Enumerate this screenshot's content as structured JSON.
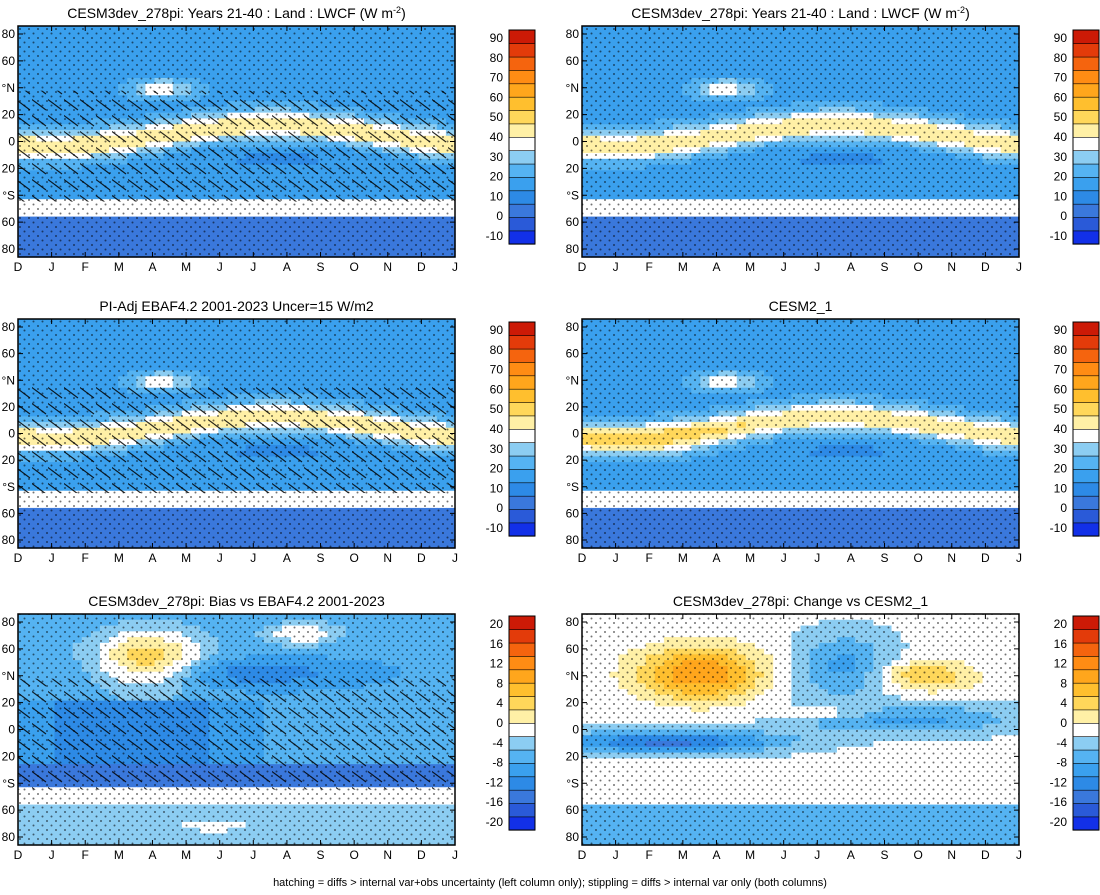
{
  "footnote": "hatching = diffs > internal var+obs uncertainty (left column only); stippling = diffs > internal var only (both columns)",
  "chart_data": [
    {
      "type": "heatmap",
      "title_html": "CESM3dev_278pi: Years 21-40 : Land : LWCF (W m<tspan baseline-shift='super' font-size='9'>-2</tspan>)",
      "title_text": "CESM3dev_278pi: Years 21-40 : Land : LWCF (W m-2)",
      "x_ticks": [
        "D",
        "J",
        "F",
        "M",
        "A",
        "M",
        "J",
        "J",
        "A",
        "S",
        "O",
        "N",
        "D",
        "J"
      ],
      "y_ticks": [
        "80",
        "60",
        "°N",
        "20",
        "0",
        "20",
        "°S",
        "60",
        "80"
      ],
      "colorbar_labels": [
        "90",
        "80",
        "70",
        "60",
        "50",
        "40",
        "30",
        "20",
        "10",
        "0",
        "-10"
      ],
      "field": "abs",
      "hatching": true,
      "stippling": true
    },
    {
      "type": "heatmap",
      "title_html": "CESM3dev_278pi: Years 21-40 : Land : LWCF (W m<tspan baseline-shift='super' font-size='9'>-2</tspan>)",
      "title_text": "CESM3dev_278pi: Years 21-40 : Land : LWCF (W m-2)",
      "x_ticks": [
        "D",
        "J",
        "F",
        "M",
        "A",
        "M",
        "J",
        "J",
        "A",
        "S",
        "O",
        "N",
        "D",
        "J"
      ],
      "y_ticks": [
        "80",
        "60",
        "°N",
        "20",
        "0",
        "20",
        "°S",
        "60",
        "80"
      ],
      "colorbar_labels": [
        "90",
        "80",
        "70",
        "60",
        "50",
        "40",
        "30",
        "20",
        "10",
        "0",
        "-10"
      ],
      "field": "abs",
      "hatching": false,
      "stippling": true
    },
    {
      "type": "heatmap",
      "title_html": "PI-Adj EBAF4.2 2001-2023 Uncer=15 W/m2",
      "title_text": "PI-Adj EBAF4.2 2001-2023 Uncer=15 W/m2",
      "x_ticks": [
        "D",
        "J",
        "F",
        "M",
        "A",
        "M",
        "J",
        "J",
        "A",
        "S",
        "O",
        "N",
        "D",
        "J"
      ],
      "y_ticks": [
        "80",
        "60",
        "°N",
        "20",
        "0",
        "20",
        "°S",
        "60",
        "80"
      ],
      "colorbar_labels": [
        "90",
        "80",
        "70",
        "60",
        "50",
        "40",
        "30",
        "20",
        "10",
        "0",
        "-10"
      ],
      "field": "abs",
      "hatching": true,
      "stippling": true
    },
    {
      "type": "heatmap",
      "title_html": "CESM2_1",
      "title_text": "CESM2_1",
      "x_ticks": [
        "D",
        "J",
        "F",
        "M",
        "A",
        "M",
        "J",
        "J",
        "A",
        "S",
        "O",
        "N",
        "D",
        "J"
      ],
      "y_ticks": [
        "80",
        "60",
        "°N",
        "20",
        "0",
        "20",
        "°S",
        "60",
        "80"
      ],
      "colorbar_labels": [
        "90",
        "80",
        "70",
        "60",
        "50",
        "40",
        "30",
        "20",
        "10",
        "0",
        "-10"
      ],
      "field": "abs",
      "hatching": false,
      "stippling": true
    },
    {
      "type": "heatmap",
      "title_html": "CESM3dev_278pi: Bias vs EBAF4.2 2001-2023",
      "title_text": "CESM3dev_278pi: Bias vs EBAF4.2 2001-2023",
      "x_ticks": [
        "D",
        "J",
        "F",
        "M",
        "A",
        "M",
        "J",
        "J",
        "A",
        "S",
        "O",
        "N",
        "D",
        "J"
      ],
      "y_ticks": [
        "80",
        "60",
        "°N",
        "20",
        "0",
        "20",
        "°S",
        "60",
        "80"
      ],
      "colorbar_labels": [
        "20",
        "16",
        "12",
        "8",
        "4",
        "0",
        "-4",
        "-8",
        "-12",
        "-16",
        "-20"
      ],
      "field": "bias",
      "hatching": true,
      "stippling": true
    },
    {
      "type": "heatmap",
      "title_html": "CESM3dev_278pi: Change vs CESM2_1",
      "title_text": "CESM3dev_278pi: Change vs CESM2_1",
      "x_ticks": [
        "D",
        "J",
        "F",
        "M",
        "A",
        "M",
        "J",
        "J",
        "A",
        "S",
        "O",
        "N",
        "D",
        "J"
      ],
      "y_ticks": [
        "80",
        "60",
        "°N",
        "20",
        "0",
        "20",
        "°S",
        "60",
        "80"
      ],
      "colorbar_labels": [
        "20",
        "16",
        "12",
        "8",
        "4",
        "0",
        "-4",
        "-8",
        "-12",
        "-16",
        "-20"
      ],
      "field": "change",
      "hatching": false,
      "stippling": true
    }
  ],
  "colors": {
    "scale": [
      "#1230e8",
      "#2a5ad8",
      "#3a78dc",
      "#2d8ae6",
      "#3aa0ee",
      "#55b3f2",
      "#8ccdf2",
      "#ffffff",
      "#fff0a6",
      "#ffd75a",
      "#ffbf2e",
      "#ffa61c",
      "#ff8c14",
      "#f5640e",
      "#e33b0a",
      "#cc1a06"
    ]
  }
}
